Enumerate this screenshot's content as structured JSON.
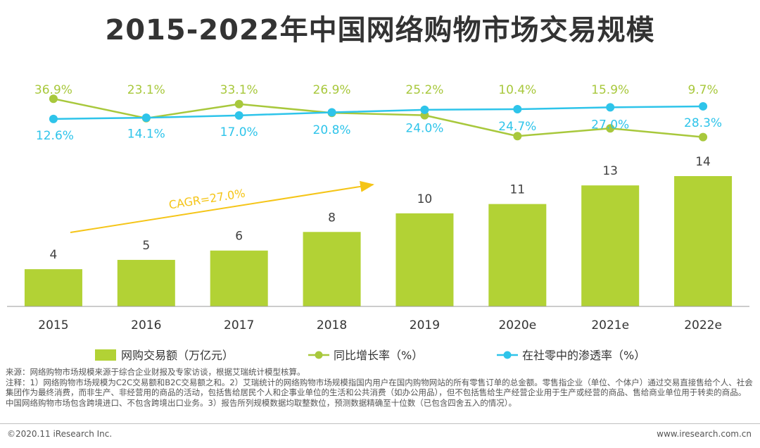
{
  "chart_data": {
    "type": "bar",
    "title": "2015-2022年中国网络购物市场交易规模",
    "categories": [
      "2015",
      "2016",
      "2017",
      "2018",
      "2019",
      "2020e",
      "2021e",
      "2022e"
    ],
    "series": [
      {
        "name": "网购交易额（万亿元）",
        "type": "bar",
        "values": [
          4,
          5,
          6,
          8,
          10,
          11,
          13,
          14
        ]
      },
      {
        "name": "同比增长率（%）",
        "type": "line",
        "values": [
          36.9,
          23.1,
          33.1,
          26.9,
          25.2,
          10.4,
          15.9,
          9.7
        ]
      },
      {
        "name": "在社零中的渗透率（%）",
        "type": "line",
        "values": [
          12.6,
          14.1,
          17.0,
          20.8,
          24.0,
          24.7,
          27.0,
          28.3
        ]
      }
    ],
    "annotation": "CAGR=27.0%",
    "colors": {
      "bar": "#b2d235",
      "growth": "#a8c83c",
      "penetration": "#2ec4ea",
      "annotation": "#f5c518"
    }
  },
  "notes": {
    "source": "来源：网络购物市场规模来源于综合企业财报及专家访谈，根据艾瑞统计模型核算。",
    "note": "注释：1）网络购物市场规模为C2C交易额和B2C交易额之和。2）艾瑞统计的网络购物市场规模指国内用户在国内购物网站的所有零售订单的总金额。零售指企业（单位、个体户）通过交易直接售给个人、社会集团作为最终消费，而非生产、非经营用的商品的活动，包括售给居民个人和企事业单位的生活和公共消费（如办公用品），但不包括售给生产经营企业用于生产或经营的商品、售给商业单位用于转卖的商品。中国网络购物市场包含跨境进口、不包含跨境出口业务。3）报告所列规模数据均取整数位，预测数据精确至十位数（已包含四舍五入的情况）。"
  },
  "footer": {
    "copyright": "©2020.11 iResearch Inc.",
    "website": "www.iresearch.com.cn"
  }
}
